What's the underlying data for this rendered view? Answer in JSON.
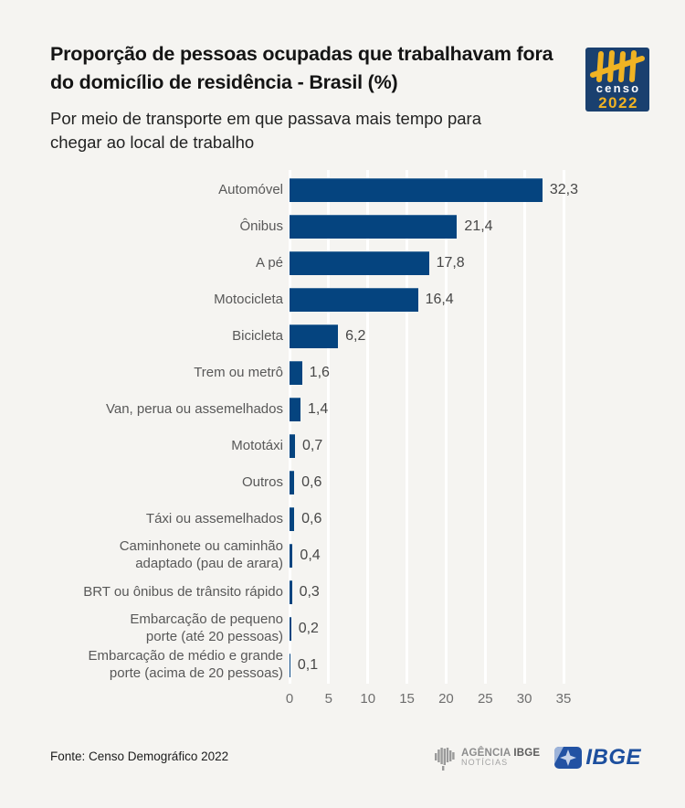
{
  "header": {
    "title": "Proporção de pessoas ocupadas que trabalhavam fora\ndo domicílio de residência - Brasil (%)",
    "subtitle": "Por meio de transporte em que passava mais tempo para\nchegar ao local de trabalho"
  },
  "censo_logo": {
    "word": "censo",
    "year": "2022",
    "bg_color": "#1a406f",
    "accent_color": "#f0b323"
  },
  "chart_data": {
    "type": "bar",
    "orientation": "horizontal",
    "title": "Proporção de pessoas ocupadas que trabalhavam fora do domicílio de residência - Brasil (%)",
    "subtitle": "Por meio de transporte em que passava mais tempo para chegar ao local de trabalho",
    "categories": [
      "Automóvel",
      "Ônibus",
      "A pé",
      "Motocicleta",
      "Bicicleta",
      "Trem ou metrô",
      "Van, perua ou assemelhados",
      "Mototáxi",
      "Outros",
      "Táxi ou assemelhados",
      "Caminhonete ou caminhão\nadaptado (pau de arara)",
      "BRT ou ônibus de trânsito rápido",
      "Embarcação de pequeno\nporte (até 20 pessoas)",
      "Embarcação de médio e grande\nporte (acima de 20 pessoas)"
    ],
    "values": [
      32.3,
      21.4,
      17.8,
      16.4,
      6.2,
      1.6,
      1.4,
      0.7,
      0.6,
      0.6,
      0.4,
      0.3,
      0.2,
      0.1
    ],
    "value_labels": [
      "32,3",
      "21,4",
      "17,8",
      "16,4",
      "6,2",
      "1,6",
      "1,4",
      "0,7",
      "0,6",
      "0,6",
      "0,4",
      "0,3",
      "0,2",
      "0,1"
    ],
    "x_ticks": [
      0,
      5,
      10,
      15,
      20,
      25,
      30,
      35
    ],
    "xlim": [
      0,
      35
    ],
    "grid": true,
    "gridline_color": "#ffffff",
    "bar_color": "#05447f",
    "legend": null
  },
  "footer": {
    "source": "Fonte: Censo Demográfico 2022",
    "agency_name": "AGÊNCIA",
    "agency_ibge": "IBGE",
    "agency_sub": "NOTÍCIAS",
    "ibge_label": "IBGE",
    "ibge_color": "#1d4f9e"
  }
}
